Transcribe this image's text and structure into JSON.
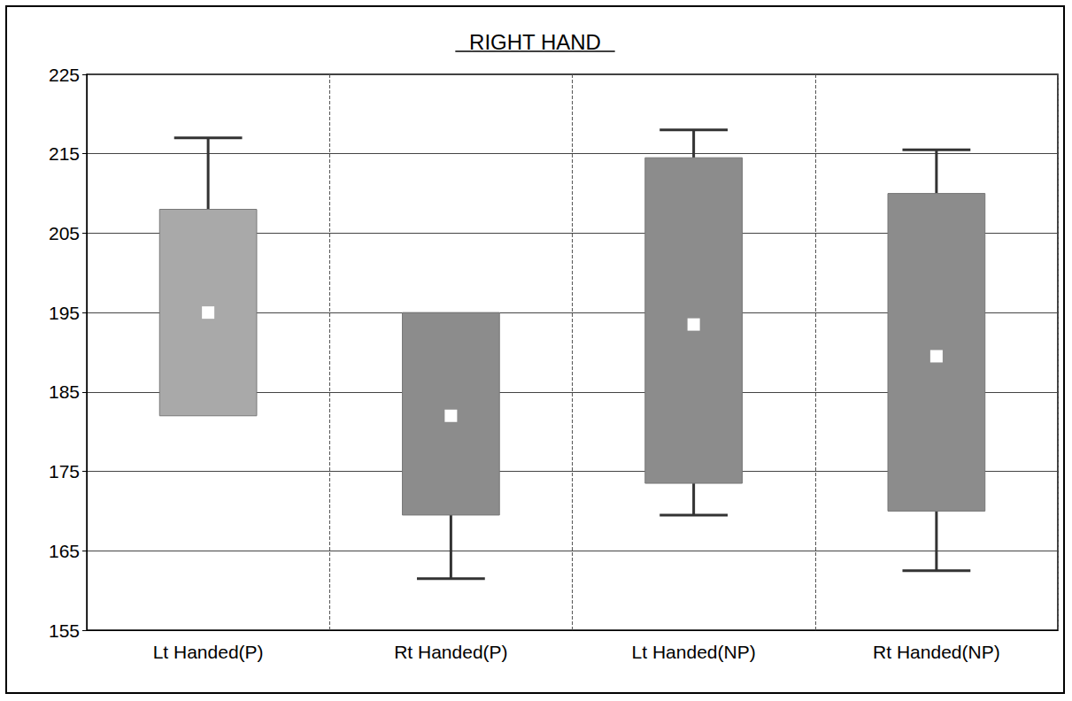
{
  "chart_data": {
    "type": "boxplot",
    "title": "RIGHT HAND",
    "categories": [
      "Lt Handed(P)",
      "Rt Handed(P)",
      "Lt Handed(NP)",
      "Rt Handed(NP)"
    ],
    "low": [
      182,
      161.5,
      169.5,
      162.5
    ],
    "box_low": [
      182,
      169.5,
      173.5,
      170
    ],
    "box_high": [
      208,
      195,
      214.5,
      210
    ],
    "high": [
      217,
      195,
      218,
      215.5
    ],
    "mean": [
      195,
      182,
      193.5,
      189.5
    ],
    "colors": [
      "#a9a9a9",
      "#8c8c8c",
      "#8c8c8c",
      "#8c8c8c"
    ],
    "ylim": [
      155,
      225
    ],
    "yticks": [
      155,
      165,
      175,
      185,
      195,
      205,
      215,
      225
    ],
    "grid": true
  }
}
